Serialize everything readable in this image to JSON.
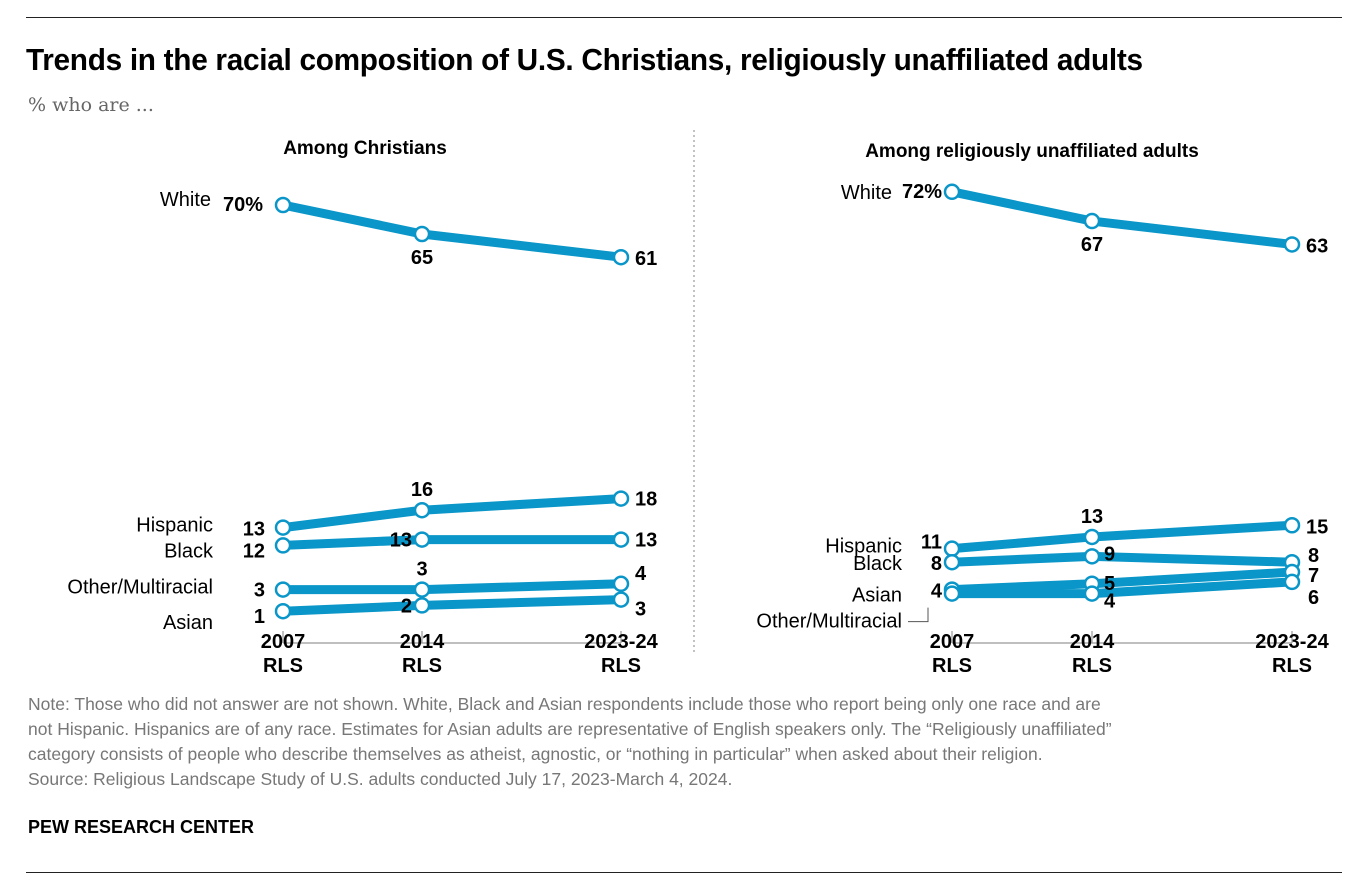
{
  "title": "Trends in the racial composition of U.S. Christians, religiously unaffiliated adults",
  "subtitle": "% who are ...",
  "notes": [
    "Note: Those who did not answer are not shown. White, Black and Asian respondents include those who report being only one race and are",
    "not Hispanic. Hispanics are of any race. Estimates for Asian adults are representative of English speakers only. The “Religiously unaffiliated”",
    "category consists of people who describe themselves as atheist, agnostic, or “nothing in particular” when asked about their religion.",
    "Source: Religious Landscape Study of U.S. adults conducted July 17, 2023-March 4, 2024."
  ],
  "brand": "PEW RESEARCH CENTER",
  "colors": {
    "line": "#0a96c8",
    "text": "#000000",
    "axis": "#999999"
  },
  "chart_data": [
    {
      "type": "line",
      "title": "Among Christians",
      "categories": [
        "2007 RLS",
        "2014 RLS",
        "2023-24 RLS"
      ],
      "ylabel": "%",
      "ylim": [
        0,
        75
      ],
      "series": [
        {
          "name": "White",
          "values": [
            70,
            65,
            61
          ],
          "labels": [
            "70%",
            "65",
            "61"
          ]
        },
        {
          "name": "Hispanic",
          "values": [
            13,
            16,
            18
          ],
          "labels": [
            "13",
            "16",
            "18"
          ]
        },
        {
          "name": "Black",
          "values": [
            12,
            13,
            13
          ],
          "labels": [
            "12",
            "13",
            "13"
          ]
        },
        {
          "name": "Other/Multiracial",
          "values": [
            3,
            3,
            4
          ],
          "labels": [
            "3",
            "3",
            "4"
          ]
        },
        {
          "name": "Asian",
          "values": [
            1,
            2,
            3
          ],
          "labels": [
            "1",
            "2",
            "3"
          ]
        }
      ]
    },
    {
      "type": "line",
      "title": "Among religiously unaffiliated adults",
      "categories": [
        "2007 RLS",
        "2014 RLS",
        "2023-24 RLS"
      ],
      "ylabel": "%",
      "ylim": [
        0,
        75
      ],
      "series": [
        {
          "name": "White",
          "values": [
            72,
            67,
            63
          ],
          "labels": [
            "72%",
            "67",
            "63"
          ]
        },
        {
          "name": "Hispanic",
          "values": [
            11,
            13,
            15
          ],
          "labels": [
            "11",
            "13",
            "15"
          ]
        },
        {
          "name": "Black",
          "values": [
            8,
            9,
            8
          ],
          "labels": [
            "8",
            "9",
            "8"
          ]
        },
        {
          "name": "Asian",
          "values": [
            4,
            5,
            7
          ],
          "labels": [
            "4",
            "5",
            "7"
          ]
        },
        {
          "name": "Other/Multiracial",
          "values": [
            4,
            4,
            6
          ],
          "labels": [
            "",
            "4",
            "6"
          ]
        }
      ]
    }
  ]
}
